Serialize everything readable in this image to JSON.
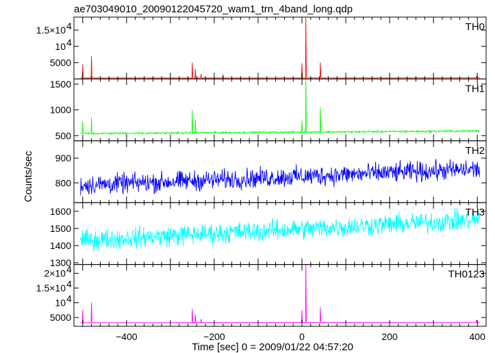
{
  "title": "ae703049010_20090122045720_wam1_trn_4band_long.qdp",
  "xlabel": "Time [sec] 0 = 2009/01/22 04:57:20",
  "ylabel": "Counts/sec",
  "chart_data": {
    "type": "line",
    "title": "ae703049010_20090122045720_wam1_trn_4band_long.qdp",
    "xlabel": "Time [sec] 0 = 2009/01/22 04:57:20",
    "ylabel": "Counts/sec",
    "xlim": [
      -520,
      420
    ],
    "x_ticks": [
      -400,
      -200,
      0,
      200,
      400
    ],
    "x_tick_labels": [
      "−400",
      "−200",
      "0",
      "200",
      "400"
    ],
    "x_start": -505,
    "x_end": 405,
    "x_step": 1,
    "grid": false,
    "legend": "none",
    "panels": [
      {
        "name": "TH0",
        "color": "#ff0000",
        "ylim": [
          0,
          19000
        ],
        "ticks": [
          {
            "value": 5000,
            "label": "5000",
            "mantissa": "",
            "exp": ""
          },
          {
            "value": 10000,
            "label": "10",
            "mantissa": "",
            "exp": "4"
          },
          {
            "value": 15000,
            "label": "1.5×10",
            "mantissa": "",
            "exp": "4"
          }
        ],
        "baseline_start": 300,
        "baseline_end": 320,
        "noise": 20,
        "spikes": [
          [
            -500,
            4500
          ],
          [
            -480,
            7000
          ],
          [
            -250,
            5000
          ],
          [
            -243,
            3000
          ],
          [
            -230,
            1500
          ],
          [
            -180,
            1400
          ],
          [
            0,
            4800
          ],
          [
            9,
            19000
          ],
          [
            42,
            5100
          ],
          [
            398,
            900
          ]
        ]
      },
      {
        "name": "TH1",
        "color": "#00ff00",
        "ylim": [
          400,
          1600
        ],
        "ticks": [
          {
            "value": 500,
            "label": "500",
            "mantissa": "",
            "exp": ""
          },
          {
            "value": 1000,
            "label": "1000",
            "mantissa": "",
            "exp": ""
          },
          {
            "value": 1500,
            "label": "1500",
            "mantissa": "",
            "exp": ""
          }
        ],
        "baseline_start": 540,
        "baseline_end": 590,
        "noise": 14,
        "spikes": [
          [
            -500,
            780
          ],
          [
            -480,
            850
          ],
          [
            -250,
            1000
          ],
          [
            -243,
            800
          ],
          [
            0,
            790
          ],
          [
            9,
            1600
          ],
          [
            42,
            1050
          ]
        ]
      },
      {
        "name": "TH2",
        "color": "#0000ff",
        "ylim": [
          720,
          970
        ],
        "ticks": [
          {
            "value": 800,
            "label": "800",
            "mantissa": "",
            "exp": ""
          },
          {
            "value": 900,
            "label": "900",
            "mantissa": "",
            "exp": ""
          }
        ],
        "baseline_start": 790,
        "baseline_end": 855,
        "noise": 28,
        "spikes": []
      },
      {
        "name": "TH3",
        "color": "#00ffff",
        "ylim": [
          1290,
          1650
        ],
        "ticks": [
          {
            "value": 1300,
            "label": "1300",
            "mantissa": "",
            "exp": ""
          },
          {
            "value": 1400,
            "label": "1400",
            "mantissa": "",
            "exp": ""
          },
          {
            "value": 1500,
            "label": "1500",
            "mantissa": "",
            "exp": ""
          },
          {
            "value": 1600,
            "label": "1600",
            "mantissa": "",
            "exp": ""
          }
        ],
        "baseline_start": 1430,
        "baseline_end": 1550,
        "noise": 42,
        "spikes": []
      },
      {
        "name": "TH0123",
        "color": "#ff00ff",
        "ylim": [
          2000,
          23000
        ],
        "ticks": [
          {
            "value": 5000,
            "label": "5000",
            "mantissa": "",
            "exp": ""
          },
          {
            "value": 10000,
            "label": "10",
            "mantissa": "",
            "exp": "4"
          },
          {
            "value": 15000,
            "label": "1.5×10",
            "mantissa": "",
            "exp": "4"
          },
          {
            "value": 20000,
            "label": "2×10",
            "mantissa": "",
            "exp": "4"
          }
        ],
        "baseline_start": 3200,
        "baseline_end": 3350,
        "noise": 40,
        "spikes": [
          [
            -500,
            7500
          ],
          [
            -480,
            10000
          ],
          [
            -250,
            8000
          ],
          [
            -243,
            6000
          ],
          [
            -230,
            4500
          ],
          [
            0,
            7500
          ],
          [
            9,
            23000
          ],
          [
            42,
            8500
          ],
          [
            398,
            4200
          ]
        ]
      }
    ]
  }
}
